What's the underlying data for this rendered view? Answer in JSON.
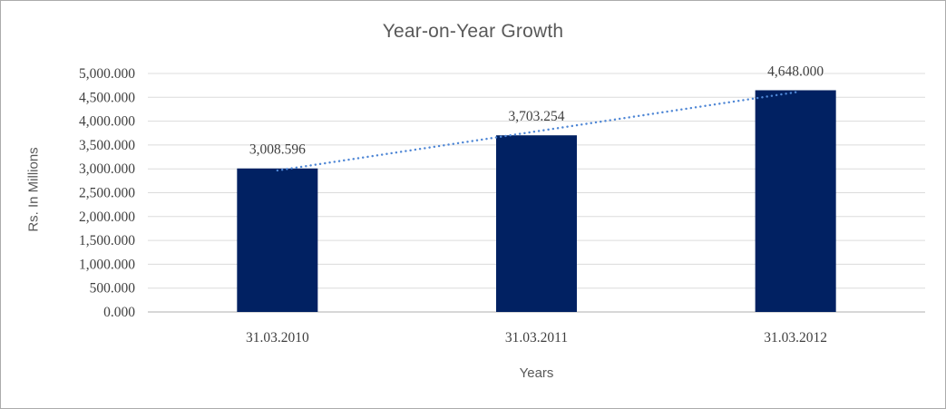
{
  "window": {
    "background": "#FFFFFF",
    "border_color": "#ABABAB"
  },
  "chart_data": {
    "type": "bar",
    "title": "Year-on-Year Growth",
    "xlabel": "Years",
    "ylabel": "Rs. In Millions",
    "categories": [
      "31.03.2010",
      "31.03.2011",
      "31.03.2012"
    ],
    "values": [
      3008.596,
      3703.254,
      4648.0
    ],
    "data_labels": [
      "3,008.596",
      "3,703.254",
      "4,648.000"
    ],
    "y_axis": {
      "min": 0,
      "max": 5000,
      "step": 500,
      "tick_labels": [
        "0.000",
        "500.000",
        "1,000.000",
        "1,500.000",
        "2,000.000",
        "2,500.000",
        "3,000.000",
        "3,500.000",
        "4,000.000",
        "4,500.000",
        "5,000.000"
      ]
    },
    "grid": true,
    "legend": "none",
    "trendline": {
      "type": "linear",
      "style": "dotted",
      "color": "#4E86D5"
    },
    "colors": {
      "bar": "#012162",
      "gridline": "#DCDCDC",
      "axis_line": "#BFBFBF",
      "title_text": "#595959",
      "tick_text": "#404040",
      "data_label_text": "#404040",
      "axis_title_text": "#595959"
    }
  }
}
